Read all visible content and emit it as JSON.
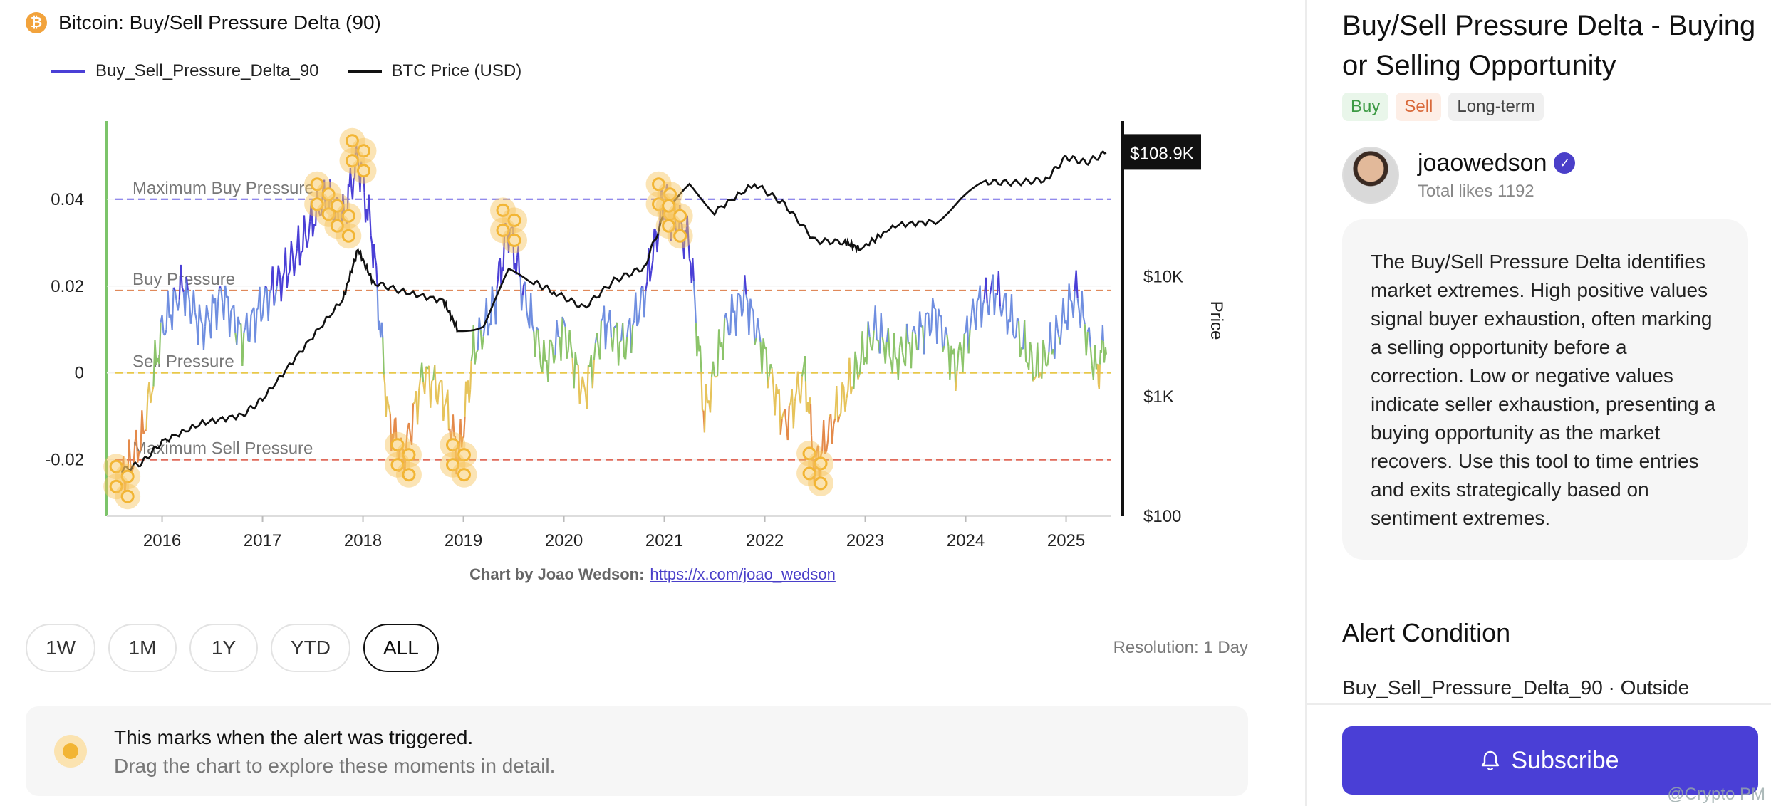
{
  "header": {
    "title": "Bitcoin: Buy/Sell Pressure Delta (90)",
    "logo_char": "₿"
  },
  "legend": [
    {
      "label": "Buy_Sell_Pressure_Delta_90",
      "color": "#4a3fd6"
    },
    {
      "label": "BTC Price (USD)",
      "color": "#111111"
    }
  ],
  "chart_data": {
    "type": "line",
    "title": "Bitcoin: Buy/Sell Pressure Delta (90)",
    "xlabel": "",
    "ylabel_left": "",
    "ylabel_right": "Price",
    "x_ticks": [
      "2016",
      "2017",
      "2018",
      "2019",
      "2020",
      "2021",
      "2022",
      "2023",
      "2024",
      "2025"
    ],
    "y_left_ticks": [
      "0.04",
      "0.02",
      "0",
      "-0.02"
    ],
    "y_left_values": [
      0.04,
      0.02,
      0,
      -0.02
    ],
    "y_left_range": [
      -0.033,
      0.058
    ],
    "y_right_ticks": [
      "$10K",
      "$1K",
      "$100"
    ],
    "y_right_values": [
      10000,
      1000,
      100
    ],
    "y_right_scale": "log",
    "y_right_range": [
      100,
      200000
    ],
    "price_badge": "$108.9K",
    "threshold_lines": [
      {
        "label": "Maximum Buy Pressure",
        "value": 0.04,
        "color": "#6e64e6"
      },
      {
        "label": "Buy Pressure",
        "value": 0.019,
        "color": "#e0895a"
      },
      {
        "label": "Sell Pressure",
        "value": 0.0,
        "color": "#e8c84a"
      },
      {
        "label": "Maximum Sell Pressure",
        "value": -0.02,
        "color": "#e06a5a"
      }
    ],
    "series": [
      {
        "name": "Buy_Sell_Pressure_Delta_90",
        "x": [
          2015.6,
          2015.8,
          2016.0,
          2016.2,
          2016.4,
          2016.6,
          2016.8,
          2017.0,
          2017.2,
          2017.4,
          2017.6,
          2017.8,
          2017.95,
          2018.1,
          2018.25,
          2018.4,
          2018.6,
          2018.8,
          2018.95,
          2019.1,
          2019.3,
          2019.45,
          2019.6,
          2019.8,
          2020.0,
          2020.2,
          2020.4,
          2020.6,
          2020.8,
          2021.0,
          2021.1,
          2021.25,
          2021.4,
          2021.6,
          2021.8,
          2022.0,
          2022.2,
          2022.4,
          2022.5,
          2022.7,
          2022.9,
          2023.1,
          2023.3,
          2023.5,
          2023.7,
          2023.9,
          2024.1,
          2024.3,
          2024.5,
          2024.7,
          2024.9,
          2025.1,
          2025.3,
          2025.4
        ],
        "y": [
          -0.025,
          -0.015,
          0.01,
          0.02,
          0.01,
          0.018,
          0.008,
          0.016,
          0.022,
          0.03,
          0.04,
          0.035,
          0.05,
          0.03,
          -0.01,
          -0.02,
          0.0,
          -0.005,
          -0.02,
          0.005,
          0.015,
          0.034,
          0.018,
          0.002,
          0.01,
          -0.005,
          0.012,
          0.006,
          0.018,
          0.04,
          0.035,
          0.03,
          -0.01,
          0.01,
          0.018,
          0.004,
          -0.012,
          0.0,
          -0.022,
          -0.01,
          0.0,
          0.01,
          0.003,
          0.008,
          0.014,
          0.001,
          0.015,
          0.019,
          0.01,
          0.0,
          0.008,
          0.019,
          0.0,
          0.008
        ],
        "color": "#4a3fd6"
      },
      {
        "name": "BTC Price (USD)",
        "x": [
          2015.6,
          2015.8,
          2016.0,
          2016.4,
          2016.8,
          2017.0,
          2017.4,
          2017.8,
          2017.95,
          2018.1,
          2018.4,
          2018.8,
          2018.95,
          2019.2,
          2019.45,
          2019.7,
          2019.9,
          2020.2,
          2020.5,
          2020.8,
          2021.0,
          2021.25,
          2021.5,
          2021.9,
          2022.2,
          2022.5,
          2022.8,
          2022.95,
          2023.3,
          2023.7,
          2023.95,
          2024.2,
          2024.5,
          2024.8,
          2025.0,
          2025.2,
          2025.4
        ],
        "y": [
          240,
          280,
          420,
          600,
          700,
          950,
          2500,
          6500,
          17000,
          9000,
          7500,
          6300,
          3500,
          4000,
          11000,
          9000,
          7500,
          5500,
          9300,
          12000,
          33000,
          57000,
          35000,
          60000,
          40000,
          20000,
          19500,
          17000,
          27000,
          29000,
          44000,
          62000,
          61000,
          65000,
          100000,
          90000,
          108900
        ],
        "color": "#111111"
      }
    ]
  },
  "credit": {
    "prefix": "Chart by Joao Wedson:",
    "link": "https://x.com/joao_wedson"
  },
  "ranges": [
    {
      "label": "1W",
      "active": false
    },
    {
      "label": "1M",
      "active": false
    },
    {
      "label": "1Y",
      "active": false
    },
    {
      "label": "YTD",
      "active": false
    },
    {
      "label": "ALL",
      "active": true
    }
  ],
  "resolution": "Resolution: 1 Day",
  "note": {
    "line1": "This marks when the alert was triggered.",
    "line2": "Drag the chart to explore these moments in detail."
  },
  "sidebar": {
    "title": "Buy/Sell Pressure Delta - Buying or Selling Opportunity",
    "tags": [
      "Buy",
      "Sell",
      "Long-term"
    ],
    "author": {
      "name": "joaowedson",
      "likes": "Total likes 1192"
    },
    "description": "The Buy/Sell Pressure Delta identifies market extremes. High positive values signal buyer exhaustion, often marking a selling opportunity before a correction. Low or negative values indicate seller exhaustion, presenting a buying opportunity as the market recovers. Use this tool to time entries and exits strategically based on sentiment extremes.",
    "alert_heading": "Alert Condition",
    "alert_condition": "Buy_Sell_Pressure_Delta_90  ·  Outside",
    "subscribe_label": "Subscribe",
    "watermark": "@Crypto PM"
  },
  "colors": {
    "accent": "#4a3fd6",
    "marker": "#f2b534",
    "green_axis": "#7cc46a"
  }
}
